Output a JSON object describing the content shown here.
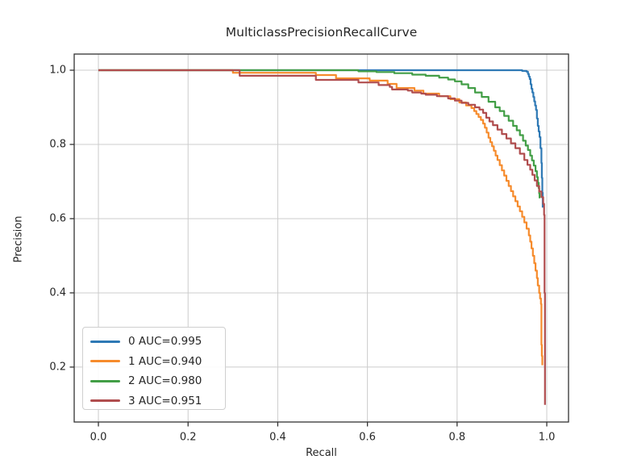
{
  "figure": {
    "background": "#ffffff",
    "text_color": "#262626",
    "grid_color": "#cccccc",
    "spine_color": "#333333"
  },
  "legend": {
    "entries": [
      {
        "label": "0 AUC=0.995",
        "color": "#2e79b5"
      },
      {
        "label": "1 AUC=0.940",
        "color": "#f68b2c"
      },
      {
        "label": "2 AUC=0.980",
        "color": "#429e46"
      },
      {
        "label": "3 AUC=0.951",
        "color": "#b04d4e"
      }
    ]
  },
  "chart_data": {
    "type": "line",
    "title": "MulticlassPrecisionRecallCurve",
    "xlabel": "Recall",
    "ylabel": "Precision",
    "xlim": [
      -0.054,
      1.0485
    ],
    "ylim": [
      0.052,
      1.0435
    ],
    "x_tick_values": [
      0.0,
      0.2,
      0.4,
      0.6,
      0.8,
      1.0
    ],
    "x_tick_labels": [
      "0.0",
      "0.2",
      "0.4",
      "0.6",
      "0.8",
      "1.0"
    ],
    "y_tick_values": [
      0.2,
      0.4,
      0.6,
      0.8,
      1.0
    ],
    "y_tick_labels": [
      "0.2",
      "0.4",
      "0.6",
      "0.8",
      "1.0"
    ],
    "grid": true,
    "legend_position": "lower left",
    "series": [
      {
        "name": "0 AUC=0.995",
        "class": "0",
        "auc": 0.995,
        "color": "#2e79b5",
        "points": [
          [
            0,
            1.0
          ],
          [
            0.93,
            1.0
          ],
          [
            0.945,
            0.998
          ],
          [
            0.955,
            0.996
          ],
          [
            0.958,
            0.99
          ],
          [
            0.96,
            0.983
          ],
          [
            0.962,
            0.976
          ],
          [
            0.964,
            0.962
          ],
          [
            0.966,
            0.95
          ],
          [
            0.968,
            0.94
          ],
          [
            0.97,
            0.928
          ],
          [
            0.972,
            0.916
          ],
          [
            0.974,
            0.905
          ],
          [
            0.976,
            0.893
          ],
          [
            0.978,
            0.87
          ],
          [
            0.98,
            0.85
          ],
          [
            0.982,
            0.835
          ],
          [
            0.984,
            0.82
          ],
          [
            0.986,
            0.79
          ],
          [
            0.988,
            0.75
          ],
          [
            0.989,
            0.71
          ],
          [
            0.99,
            0.67
          ],
          [
            0.991,
            0.63
          ]
        ]
      },
      {
        "name": "1 AUC=0.940",
        "class": "1",
        "auc": 0.94,
        "color": "#f68b2c",
        "points": [
          [
            0,
            1.0
          ],
          [
            0.3,
            1.0
          ],
          [
            0.3,
            0.993
          ],
          [
            0.48,
            0.993
          ],
          [
            0.485,
            0.987
          ],
          [
            0.525,
            0.987
          ],
          [
            0.53,
            0.978
          ],
          [
            0.6,
            0.978
          ],
          [
            0.605,
            0.972
          ],
          [
            0.64,
            0.972
          ],
          [
            0.645,
            0.963
          ],
          [
            0.66,
            0.963
          ],
          [
            0.665,
            0.952
          ],
          [
            0.7,
            0.952
          ],
          [
            0.705,
            0.945
          ],
          [
            0.72,
            0.945
          ],
          [
            0.725,
            0.937
          ],
          [
            0.755,
            0.937
          ],
          [
            0.76,
            0.93
          ],
          [
            0.78,
            0.93
          ],
          [
            0.785,
            0.922
          ],
          [
            0.8,
            0.922
          ],
          [
            0.805,
            0.913
          ],
          [
            0.815,
            0.913
          ],
          [
            0.82,
            0.905
          ],
          [
            0.828,
            0.905
          ],
          [
            0.832,
            0.898
          ],
          [
            0.838,
            0.89
          ],
          [
            0.843,
            0.882
          ],
          [
            0.848,
            0.874
          ],
          [
            0.853,
            0.866
          ],
          [
            0.858,
            0.856
          ],
          [
            0.862,
            0.845
          ],
          [
            0.866,
            0.832
          ],
          [
            0.87,
            0.818
          ],
          [
            0.874,
            0.806
          ],
          [
            0.878,
            0.795
          ],
          [
            0.882,
            0.783
          ],
          [
            0.886,
            0.77
          ],
          [
            0.89,
            0.758
          ],
          [
            0.895,
            0.744
          ],
          [
            0.9,
            0.73
          ],
          [
            0.905,
            0.716
          ],
          [
            0.91,
            0.702
          ],
          [
            0.915,
            0.688
          ],
          [
            0.92,
            0.674
          ],
          [
            0.925,
            0.66
          ],
          [
            0.93,
            0.647
          ],
          [
            0.935,
            0.633
          ],
          [
            0.94,
            0.62
          ],
          [
            0.945,
            0.605
          ],
          [
            0.95,
            0.59
          ],
          [
            0.955,
            0.573
          ],
          [
            0.96,
            0.555
          ],
          [
            0.963,
            0.538
          ],
          [
            0.966,
            0.52
          ],
          [
            0.969,
            0.5
          ],
          [
            0.972,
            0.48
          ],
          [
            0.975,
            0.46
          ],
          [
            0.978,
            0.44
          ],
          [
            0.98,
            0.42
          ],
          [
            0.983,
            0.4
          ],
          [
            0.985,
            0.385
          ],
          [
            0.987,
            0.37
          ],
          [
            0.988,
            0.3
          ],
          [
            0.988,
            0.26
          ],
          [
            0.989,
            0.23
          ],
          [
            0.99,
            0.205
          ]
        ]
      },
      {
        "name": "2 AUC=0.980",
        "class": "2",
        "auc": 0.98,
        "color": "#429e46",
        "points": [
          [
            0,
            1.0
          ],
          [
            0.55,
            1.0
          ],
          [
            0.58,
            0.997
          ],
          [
            0.62,
            0.995
          ],
          [
            0.66,
            0.992
          ],
          [
            0.7,
            0.988
          ],
          [
            0.73,
            0.985
          ],
          [
            0.76,
            0.98
          ],
          [
            0.78,
            0.975
          ],
          [
            0.795,
            0.97
          ],
          [
            0.81,
            0.962
          ],
          [
            0.825,
            0.952
          ],
          [
            0.84,
            0.94
          ],
          [
            0.855,
            0.928
          ],
          [
            0.87,
            0.915
          ],
          [
            0.885,
            0.9
          ],
          [
            0.895,
            0.89
          ],
          [
            0.905,
            0.877
          ],
          [
            0.915,
            0.864
          ],
          [
            0.925,
            0.85
          ],
          [
            0.933,
            0.838
          ],
          [
            0.94,
            0.825
          ],
          [
            0.947,
            0.81
          ],
          [
            0.953,
            0.797
          ],
          [
            0.958,
            0.785
          ],
          [
            0.963,
            0.77
          ],
          [
            0.967,
            0.757
          ],
          [
            0.971,
            0.743
          ],
          [
            0.975,
            0.728
          ],
          [
            0.978,
            0.712
          ],
          [
            0.98,
            0.697
          ],
          [
            0.982,
            0.682
          ],
          [
            0.983,
            0.668
          ],
          [
            0.984,
            0.655
          ]
        ]
      },
      {
        "name": "3 AUC=0.951",
        "class": "3",
        "auc": 0.951,
        "color": "#b04d4e",
        "points": [
          [
            0,
            1.0
          ],
          [
            0.315,
            1.0
          ],
          [
            0.315,
            0.985
          ],
          [
            0.48,
            0.985
          ],
          [
            0.485,
            0.974
          ],
          [
            0.575,
            0.974
          ],
          [
            0.58,
            0.967
          ],
          [
            0.62,
            0.967
          ],
          [
            0.625,
            0.96
          ],
          [
            0.65,
            0.955
          ],
          [
            0.655,
            0.948
          ],
          [
            0.69,
            0.945
          ],
          [
            0.7,
            0.94
          ],
          [
            0.72,
            0.937
          ],
          [
            0.73,
            0.934
          ],
          [
            0.755,
            0.93
          ],
          [
            0.78,
            0.924
          ],
          [
            0.795,
            0.918
          ],
          [
            0.81,
            0.912
          ],
          [
            0.825,
            0.907
          ],
          [
            0.84,
            0.9
          ],
          [
            0.85,
            0.894
          ],
          [
            0.858,
            0.885
          ],
          [
            0.865,
            0.872
          ],
          [
            0.872,
            0.862
          ],
          [
            0.88,
            0.852
          ],
          [
            0.89,
            0.84
          ],
          [
            0.9,
            0.828
          ],
          [
            0.91,
            0.816
          ],
          [
            0.92,
            0.803
          ],
          [
            0.93,
            0.79
          ],
          [
            0.94,
            0.775
          ],
          [
            0.95,
            0.758
          ],
          [
            0.957,
            0.745
          ],
          [
            0.963,
            0.732
          ],
          [
            0.968,
            0.718
          ],
          [
            0.973,
            0.703
          ],
          [
            0.978,
            0.688
          ],
          [
            0.983,
            0.673
          ],
          [
            0.988,
            0.658
          ],
          [
            0.992,
            0.64
          ],
          [
            0.994,
            0.61
          ],
          [
            0.995,
            0.5
          ],
          [
            0.995,
            0.4
          ],
          [
            0.996,
            0.3
          ],
          [
            0.996,
            0.2
          ],
          [
            0.996,
            0.098
          ]
        ]
      }
    ]
  }
}
